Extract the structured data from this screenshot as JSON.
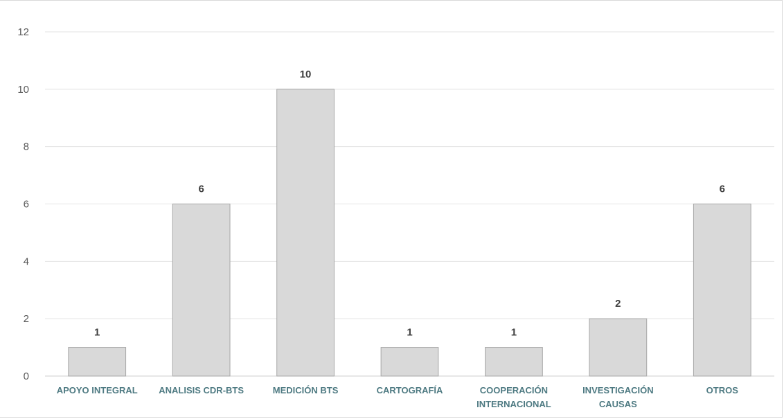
{
  "chart_data": {
    "type": "bar",
    "title": "",
    "xlabel": "",
    "ylabel": "",
    "categories": [
      [
        "APOYO INTEGRAL"
      ],
      [
        "ANALISIS CDR-BTS"
      ],
      [
        "MEDICIÓN BTS"
      ],
      [
        "CARTOGRAFÍA"
      ],
      [
        "COOPERACIÓN",
        "INTERNACIONAL"
      ],
      [
        "INVESTIGACIÓN",
        "CAUSAS"
      ],
      [
        "OTROS"
      ]
    ],
    "values": [
      1,
      6,
      10,
      1,
      1,
      2,
      6
    ],
    "ylim": [
      0,
      12
    ],
    "yticks": [
      0,
      2,
      4,
      6,
      8,
      10,
      12
    ],
    "grid": true,
    "legend": "none",
    "colors": {
      "bar_fill": "#d9d9d9",
      "bar_stroke": "#a6a6a6",
      "category_text": "#4e7a82"
    }
  }
}
